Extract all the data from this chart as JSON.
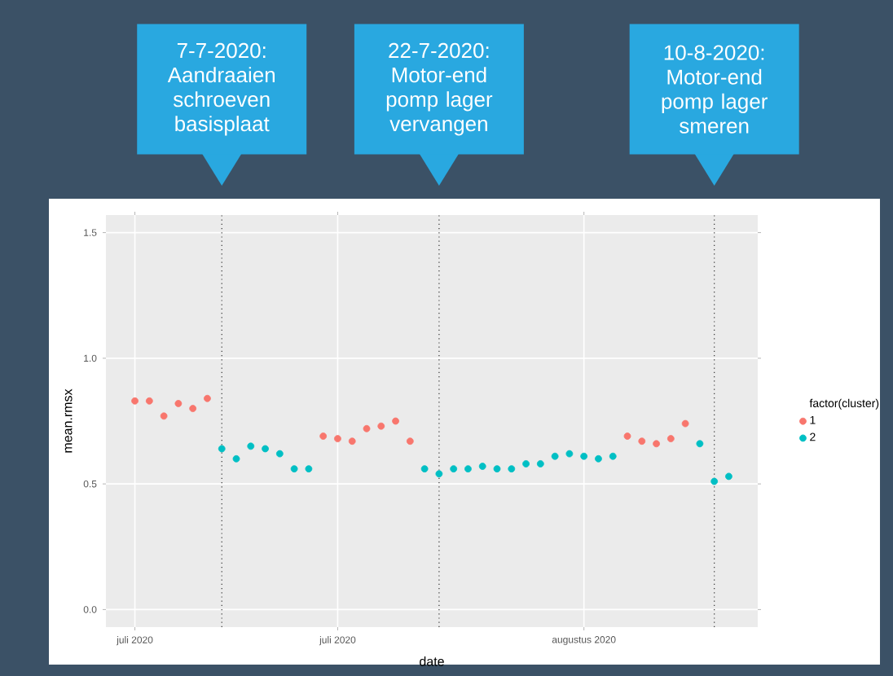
{
  "chart_data": {
    "type": "scatter",
    "xlabel": "date",
    "ylabel": "mean.rmsx",
    "legend_title": "factor(cluster)",
    "series": [
      {
        "name": "1",
        "color": "#f8766d",
        "x": [
          "2020-07-01",
          "2020-07-02",
          "2020-07-03",
          "2020-07-04",
          "2020-07-05",
          "2020-07-06",
          "2020-07-14",
          "2020-07-15",
          "2020-07-16",
          "2020-07-17",
          "2020-07-18",
          "2020-07-19",
          "2020-07-20",
          "2020-08-04",
          "2020-08-05",
          "2020-08-06",
          "2020-08-07",
          "2020-08-08"
        ],
        "values": [
          0.83,
          0.83,
          0.77,
          0.82,
          0.8,
          0.84,
          0.69,
          0.68,
          0.67,
          0.72,
          0.73,
          0.75,
          0.67,
          0.69,
          0.67,
          0.66,
          0.68,
          0.74
        ]
      },
      {
        "name": "2",
        "color": "#00bfc4",
        "x": [
          "2020-07-07",
          "2020-07-08",
          "2020-07-09",
          "2020-07-10",
          "2020-07-11",
          "2020-07-12",
          "2020-07-13",
          "2020-07-21",
          "2020-07-22",
          "2020-07-23",
          "2020-07-24",
          "2020-07-25",
          "2020-07-26",
          "2020-07-27",
          "2020-07-28",
          "2020-07-29",
          "2020-07-30",
          "2020-07-31",
          "2020-08-01",
          "2020-08-02",
          "2020-08-03",
          "2020-08-09",
          "2020-08-10",
          "2020-08-11"
        ],
        "values": [
          0.64,
          0.6,
          0.65,
          0.64,
          0.62,
          0.56,
          0.56,
          0.56,
          0.54,
          0.56,
          0.56,
          0.57,
          0.56,
          0.56,
          0.58,
          0.58,
          0.61,
          0.62,
          0.61,
          0.6,
          0.61,
          0.66,
          0.51,
          0.53
        ]
      }
    ],
    "xlim": [
      "2020-06-29",
      "2020-08-13"
    ],
    "xticks": [
      {
        "value": "2020-07-01",
        "label": "juli 2020"
      },
      {
        "value": "2020-07-15",
        "label": "juli 2020"
      },
      {
        "value": "2020-08-01",
        "label": "augustus 2020"
      }
    ],
    "ylim": [
      -0.07,
      1.57
    ],
    "yticks": [
      {
        "value": 0,
        "label": "0.0"
      },
      {
        "value": 0.5,
        "label": "0.5"
      },
      {
        "value": 1,
        "label": "1.0"
      },
      {
        "value": 1.5,
        "label": "1.5"
      }
    ],
    "ref_lines": [
      {
        "axis": "x",
        "value": "2020-07-07",
        "line_style": "dotted",
        "color": "#333333"
      },
      {
        "axis": "x",
        "value": "2020-07-22",
        "line_style": "dotted",
        "color": "#333333"
      },
      {
        "axis": "x",
        "value": "2020-08-10",
        "line_style": "dotted",
        "color": "#333333"
      }
    ],
    "annotations": [
      "7-7-2020: Aandraaien schroeven basisplaat",
      "22-7-2020: Motor-end pomp lager vervangen",
      "10-8-2020: Motor-end pomp lager smeren"
    ],
    "grid": true,
    "legend": "right"
  }
}
